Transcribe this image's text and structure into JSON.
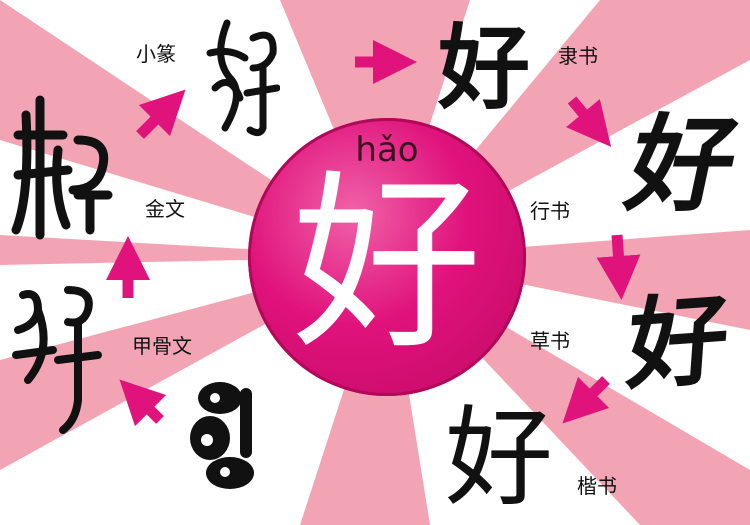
{
  "center": {
    "pinyin": "hǎo",
    "character": "好"
  },
  "scripts": {
    "xiaozhuan_label": "小篆",
    "lishu_label": "隶书",
    "jinwen_label": "金文",
    "xingshu_label": "行书",
    "jiaguwen_label": "甲骨文",
    "caoshu_label": "草书",
    "kaishu_label": "楷书",
    "lishu_char": "好",
    "xingshu_char": "好",
    "caoshu_char": "好",
    "kaishu_char": "好"
  },
  "colors": {
    "pink_light": "#f2a4b4",
    "pink_accent": "#e0127c",
    "arrow": "#e0127c"
  }
}
